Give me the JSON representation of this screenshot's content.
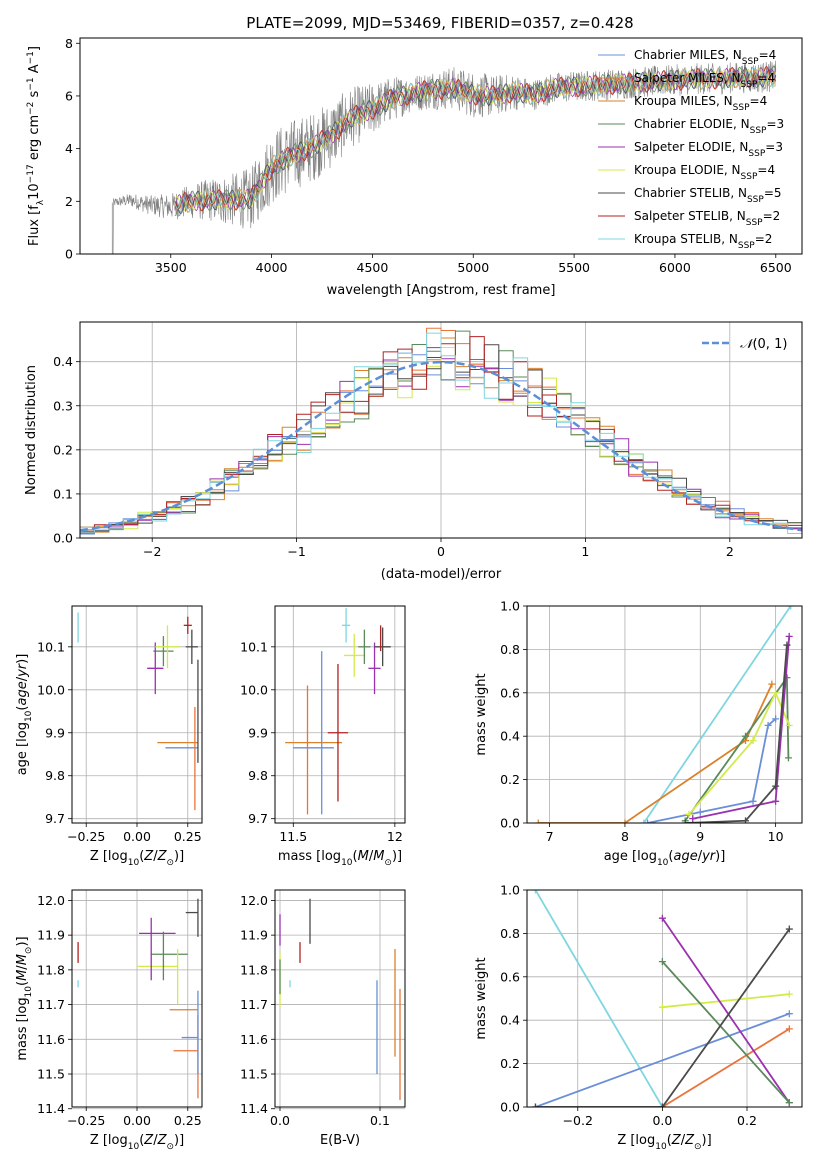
{
  "figure": {
    "title": "PLATE=2099, MJD=53469, FIBERID=0357, z=0.428"
  },
  "colors": {
    "Chabrier MILES": "#6a8fd8",
    "Salpeter MILES": "#e8743b",
    "Kroupa MILES": "#d9822b",
    "Chabrier ELODIE": "#5a8a5a",
    "Salpeter ELODIE": "#9b30b0",
    "Kroupa ELODIE": "#d4ea4a",
    "Chabrier STELIB": "#4a4a4a",
    "Salpeter STELIB": "#b22222",
    "Kroupa STELIB": "#7fd6e0",
    "gaussian": "#5b8fd8",
    "data": "#808080"
  },
  "chart_data": [
    {
      "id": "spectrum",
      "type": "line",
      "title": "PLATE=2099, MJD=53469, FIBERID=0357, z=0.428",
      "xlabel": "wavelength [Angstrom, rest frame]",
      "ylabel": "Flux [f_λ 10^-17 erg cm^-2 s^-1 A^-1]",
      "xlim": [
        3050,
        6630
      ],
      "ylim": [
        0,
        8.2
      ],
      "xticks": [
        3500,
        4000,
        4500,
        5000,
        5500,
        6000,
        6500
      ],
      "yticks": [
        0,
        2,
        4,
        6,
        8
      ],
      "grid": false,
      "legend_position": "top-right",
      "legend": [
        {
          "label": "Chabrier MILES, N",
          "sub": "SSP",
          "suffix": "=4"
        },
        {
          "label": "Salpeter MILES, N",
          "sub": "SSP",
          "suffix": "=4"
        },
        {
          "label": "Kroupa MILES, N",
          "sub": "SSP",
          "suffix": "=4"
        },
        {
          "label": "Chabrier ELODIE, N",
          "sub": "SSP",
          "suffix": "=3"
        },
        {
          "label": "Salpeter ELODIE, N",
          "sub": "SSP",
          "suffix": "=3"
        },
        {
          "label": "Kroupa ELODIE, N",
          "sub": "SSP",
          "suffix": "=4"
        },
        {
          "label": "Chabrier STELIB, N",
          "sub": "SSP",
          "suffix": "=5"
        },
        {
          "label": "Salpeter STELIB, N",
          "sub": "SSP",
          "suffix": "=2"
        },
        {
          "label": "Kroupa STELIB, N",
          "sub": "SSP",
          "suffix": "=2"
        }
      ],
      "continuum": [
        [
          3210,
          1.95
        ],
        [
          3300,
          2.05
        ],
        [
          3400,
          1.85
        ],
        [
          3500,
          1.8
        ],
        [
          3600,
          2.0
        ],
        [
          3700,
          2.05
        ],
        [
          3800,
          2.05
        ],
        [
          3900,
          2.1
        ],
        [
          4000,
          3.3
        ],
        [
          4100,
          3.75
        ],
        [
          4200,
          4.05
        ],
        [
          4300,
          4.55
        ],
        [
          4400,
          5.2
        ],
        [
          4500,
          5.5
        ],
        [
          4600,
          5.9
        ],
        [
          4700,
          6.1
        ],
        [
          4800,
          6.25
        ],
        [
          4900,
          6.3
        ],
        [
          5000,
          6.05
        ],
        [
          5100,
          6.0
        ],
        [
          5200,
          6.15
        ],
        [
          5300,
          6.05
        ],
        [
          5400,
          6.3
        ],
        [
          5500,
          6.35
        ],
        [
          5600,
          6.4
        ],
        [
          5700,
          6.45
        ],
        [
          5800,
          6.5
        ],
        [
          5900,
          6.55
        ],
        [
          6000,
          6.6
        ],
        [
          6100,
          6.65
        ],
        [
          6200,
          6.65
        ],
        [
          6300,
          6.7
        ],
        [
          6400,
          6.7
        ],
        [
          6500,
          6.75
        ]
      ],
      "noise_scale": [
        [
          3210,
          0.15
        ],
        [
          3500,
          0.5
        ],
        [
          3800,
          1.0
        ],
        [
          4000,
          1.4
        ],
        [
          4300,
          1.3
        ],
        [
          4700,
          0.7
        ],
        [
          5000,
          0.9
        ],
        [
          5300,
          0.6
        ],
        [
          5700,
          0.6
        ],
        [
          6500,
          0.6
        ]
      ]
    },
    {
      "id": "residuals",
      "type": "area",
      "xlabel": "(data-model)/error",
      "ylabel": "Normed distribution",
      "xlim": [
        -2.5,
        2.5
      ],
      "ylim": [
        0,
        0.49
      ],
      "xticks": [
        -2,
        -1,
        0,
        1,
        2
      ],
      "yticks": [
        0.0,
        0.1,
        0.2,
        0.3,
        0.4
      ],
      "grid": true,
      "legend_position": "top-right",
      "legend": [
        {
          "label": "N(0, 1)",
          "style": "dashed"
        }
      ],
      "bin_width": 0.1
    },
    {
      "id": "age_vs_z",
      "type": "scatter",
      "xlabel": "Z [log10(Z/Z⊙)]",
      "ylabel": "age [log10(age/yr)]",
      "xlim": [
        -0.32,
        0.32
      ],
      "ylim": [
        9.69,
        10.195
      ],
      "xticks": [
        -0.25,
        0.0,
        0.25
      ],
      "xticklabels": [
        "−0.25",
        "0.00",
        "0.25"
      ],
      "yticks": [
        9.7,
        9.8,
        9.9,
        10.0,
        10.1
      ],
      "grid": true,
      "points": [
        {
          "model": "Chabrier MILES",
          "x": 0.22,
          "xerr": 0.08,
          "y": 9.865,
          "yerr": 0.0
        },
        {
          "model": "Kroupa MILES",
          "x": 0.2,
          "xerr": 0.1,
          "y": 9.877,
          "yerr": 0.0
        },
        {
          "model": "Salpeter MILES",
          "x": 0.285,
          "xerr": 0.0,
          "y": 9.84,
          "yerr": 0.12
        },
        {
          "model": "Chabrier ELODIE",
          "x": 0.13,
          "xerr": 0.05,
          "y": 10.09,
          "yerr": 0.035
        },
        {
          "model": "Salpeter ELODIE",
          "x": 0.09,
          "xerr": 0.04,
          "y": 10.05,
          "yerr": 0.06
        },
        {
          "model": "Kroupa ELODIE",
          "x": 0.15,
          "xerr": 0.06,
          "y": 10.1,
          "yerr": 0.05
        },
        {
          "model": "Chabrier STELIB",
          "x": 0.27,
          "xerr": 0.03,
          "y": 10.1,
          "yerr": 0.04
        },
        {
          "model": "Salpeter STELIB",
          "x": 0.25,
          "xerr": 0.02,
          "y": 10.15,
          "yerr": 0.02
        },
        {
          "model": "Kroupa STELIB",
          "x": -0.29,
          "xerr": 0.0,
          "y": 10.145,
          "yerr": 0.035
        },
        {
          "model": "Chabrier STELIB",
          "x": 0.3,
          "xerr": 0.0,
          "y": 9.95,
          "yerr": 0.12
        }
      ]
    },
    {
      "id": "age_vs_mass",
      "type": "scatter",
      "xlabel": "mass [log10(M/M⊙)]",
      "ylabel": "",
      "xlim": [
        11.41,
        12.05
      ],
      "ylim": [
        9.69,
        10.195
      ],
      "xticks": [
        11.5,
        12.0
      ],
      "yticks": [
        9.7,
        9.8,
        9.9,
        10.0,
        10.1
      ],
      "grid": true,
      "points": [
        {
          "model": "Kroupa MILES",
          "x": 11.6,
          "xerr": 0.14,
          "y": 9.877,
          "yerr": 0.0
        },
        {
          "model": "Chabrier MILES",
          "x": 11.6,
          "xerr": 0.1,
          "y": 9.865,
          "yerr": 0.0
        },
        {
          "model": "Salpeter MILES",
          "x": 11.57,
          "xerr": 0.0,
          "y": 9.86,
          "yerr": 0.15
        },
        {
          "model": "Chabrier MILES",
          "x": 11.64,
          "xerr": 0.0,
          "y": 9.9,
          "yerr": 0.19
        },
        {
          "model": "Salpeter STELIB",
          "x": 11.72,
          "xerr": 0.05,
          "y": 9.9,
          "yerr": 0.16
        },
        {
          "model": "Kroupa STELIB",
          "x": 11.76,
          "xerr": 0.02,
          "y": 10.15,
          "yerr": 0.04
        },
        {
          "model": "Kroupa ELODIE",
          "x": 11.8,
          "xerr": 0.05,
          "y": 10.08,
          "yerr": 0.05
        },
        {
          "model": "Chabrier ELODIE",
          "x": 11.85,
          "xerr": 0.03,
          "y": 10.1,
          "yerr": 0.04
        },
        {
          "model": "Salpeter ELODIE",
          "x": 11.9,
          "xerr": 0.03,
          "y": 10.05,
          "yerr": 0.06
        },
        {
          "model": "Chabrier STELIB",
          "x": 11.94,
          "xerr": 0.04,
          "y": 10.1,
          "yerr": 0.045
        },
        {
          "model": "Salpeter STELIB",
          "x": 11.93,
          "xerr": 0.0,
          "y": 10.12,
          "yerr": 0.03
        }
      ]
    },
    {
      "id": "weight_vs_age",
      "type": "line",
      "xlabel": "age [log10(age/yr)]",
      "ylabel": "mass weight",
      "xlim": [
        6.7,
        10.35
      ],
      "ylim": [
        0,
        1.0
      ],
      "xticks": [
        7,
        8,
        9,
        10
      ],
      "yticks": [
        0.0,
        0.2,
        0.4,
        0.6,
        0.8,
        1.0
      ],
      "grid": true,
      "series": [
        {
          "model": "Kroupa STELIB",
          "points": [
            [
              8.25,
              0.0
            ],
            [
              10.2,
              1.0
            ]
          ]
        },
        {
          "model": "Kroupa MILES",
          "points": [
            [
              6.85,
              0.0
            ],
            [
              8.0,
              0.0
            ],
            [
              9.6,
              0.38
            ],
            [
              9.95,
              0.64
            ]
          ]
        },
        {
          "model": "Chabrier ELODIE",
          "points": [
            [
              8.8,
              0.01
            ],
            [
              9.6,
              0.4
            ],
            [
              10.15,
              0.67
            ],
            [
              10.17,
              0.3
            ]
          ]
        },
        {
          "model": "Chabrier MILES",
          "points": [
            [
              8.3,
              0.0
            ],
            [
              9.0,
              0.05
            ],
            [
              9.7,
              0.1
            ],
            [
              9.9,
              0.45
            ],
            [
              10.0,
              0.48
            ]
          ]
        },
        {
          "model": "Kroupa ELODIE",
          "points": [
            [
              8.85,
              0.04
            ],
            [
              9.7,
              0.38
            ],
            [
              10.0,
              0.6
            ],
            [
              10.18,
              0.45
            ]
          ]
        },
        {
          "model": "Salpeter ELODIE",
          "points": [
            [
              8.9,
              0.02
            ],
            [
              10.0,
              0.1
            ],
            [
              10.18,
              0.86
            ]
          ]
        },
        {
          "model": "Chabrier STELIB",
          "points": [
            [
              8.8,
              0.0
            ],
            [
              9.6,
              0.01
            ],
            [
              10.0,
              0.17
            ],
            [
              10.15,
              0.82
            ]
          ]
        }
      ]
    },
    {
      "id": "mass_vs_z",
      "type": "scatter",
      "xlabel": "Z [log10(Z/Z⊙)]",
      "ylabel": "mass [log10(M/M⊙)]",
      "xlim": [
        -0.32,
        0.32
      ],
      "ylim": [
        11.405,
        12.03
      ],
      "xticks": [
        -0.25,
        0.0,
        0.25
      ],
      "xticklabels": [
        "−0.25",
        "0.00",
        "0.25"
      ],
      "yticks": [
        11.4,
        11.5,
        11.6,
        11.7,
        11.8,
        11.9,
        12.0
      ],
      "grid": true,
      "points": [
        {
          "model": "Salpeter MILES",
          "x": 0.24,
          "xerr": 0.06,
          "y": 11.567,
          "yerr": 0.0
        },
        {
          "model": "Chabrier MILES",
          "x": 0.26,
          "xerr": 0.04,
          "y": 11.605,
          "yerr": 0.0
        },
        {
          "model": "Salpeter MILES",
          "x": 0.3,
          "xerr": 0.0,
          "y": 11.55,
          "yerr": 0.12
        },
        {
          "model": "Chabrier MILES",
          "x": 0.3,
          "xerr": 0.0,
          "y": 11.62,
          "yerr": 0.12
        },
        {
          "model": "Kroupa MILES",
          "x": 0.23,
          "xerr": 0.07,
          "y": 11.685,
          "yerr": 0.0
        },
        {
          "model": "Kroupa ELODIE",
          "x": 0.1,
          "xerr": 0.1,
          "y": 11.81,
          "yerr": 0.0
        },
        {
          "model": "Chabrier ELODIE",
          "x": 0.16,
          "xerr": 0.09,
          "y": 11.845,
          "yerr": 0.0
        },
        {
          "model": "Salpeter ELODIE",
          "x": 0.1,
          "xerr": 0.09,
          "y": 11.905,
          "yerr": 0.0
        },
        {
          "model": "Salpeter ELODIE",
          "x": 0.07,
          "xerr": 0.0,
          "y": 11.86,
          "yerr": 0.09
        },
        {
          "model": "Chabrier ELODIE",
          "x": 0.13,
          "xerr": 0.0,
          "y": 11.84,
          "yerr": 0.07
        },
        {
          "model": "Kroupa ELODIE",
          "x": 0.2,
          "xerr": 0.0,
          "y": 11.78,
          "yerr": 0.08
        },
        {
          "model": "Chabrier STELIB",
          "x": 0.27,
          "xerr": 0.03,
          "y": 11.965,
          "yerr": 0.0
        },
        {
          "model": "Chabrier STELIB",
          "x": 0.3,
          "xerr": 0.0,
          "y": 11.95,
          "yerr": 0.055
        },
        {
          "model": "Salpeter STELIB",
          "x": -0.29,
          "xerr": 0.0,
          "y": 11.85,
          "yerr": 0.03
        },
        {
          "model": "Kroupa STELIB",
          "x": -0.29,
          "xerr": 0.0,
          "y": 11.76,
          "yerr": 0.01
        }
      ]
    },
    {
      "id": "mass_vs_ebv",
      "type": "scatter",
      "xlabel": "E(B-V)",
      "ylabel": "",
      "xlim": [
        -0.005,
        0.125
      ],
      "ylim": [
        11.405,
        12.03
      ],
      "xticks": [
        0.0,
        0.1
      ],
      "xticklabels": [
        "0.0",
        "0.1"
      ],
      "yticks": [
        11.4,
        11.5,
        11.6,
        11.7,
        11.8,
        11.9,
        12.0
      ],
      "grid": true,
      "points": [
        {
          "model": "Salpeter ELODIE",
          "x": 0.0,
          "xerr": 0.0,
          "y": 11.915,
          "yerr": 0.045
        },
        {
          "model": "Kroupa ELODIE",
          "x": 0.0,
          "xerr": 0.0,
          "y": 11.77,
          "yerr": 0.08
        },
        {
          "model": "Chabrier ELODIE",
          "x": 0.0,
          "xerr": 0.0,
          "y": 11.78,
          "yerr": 0.05
        },
        {
          "model": "Kroupa STELIB",
          "x": 0.01,
          "xerr": 0.0,
          "y": 11.76,
          "yerr": 0.01
        },
        {
          "model": "Salpeter STELIB",
          "x": 0.02,
          "xerr": 0.0,
          "y": 11.85,
          "yerr": 0.03
        },
        {
          "model": "Chabrier STELIB",
          "x": 0.03,
          "xerr": 0.0,
          "y": 11.94,
          "yerr": 0.065
        },
        {
          "model": "Chabrier MILES",
          "x": 0.097,
          "xerr": 0.0,
          "y": 11.635,
          "yerr": 0.135
        },
        {
          "model": "Kroupa MILES",
          "x": 0.115,
          "xerr": 0.0,
          "y": 11.705,
          "yerr": 0.155
        },
        {
          "model": "Salpeter MILES",
          "x": 0.12,
          "xerr": 0.0,
          "y": 11.585,
          "yerr": 0.16
        }
      ]
    },
    {
      "id": "weight_vs_z",
      "type": "line",
      "xlabel": "Z [log10(Z/Z⊙)]",
      "ylabel": "mass weight",
      "xlim": [
        -0.32,
        0.33
      ],
      "ylim": [
        0,
        1.0
      ],
      "xticks": [
        -0.2,
        0.0,
        0.2
      ],
      "xticklabels": [
        "−0.2",
        "0.0",
        "0.2"
      ],
      "yticks": [
        0.0,
        0.2,
        0.4,
        0.6,
        0.8,
        1.0
      ],
      "grid": true,
      "series": [
        {
          "model": "Kroupa STELIB",
          "points": [
            [
              -0.3,
              1.0
            ],
            [
              0.0,
              0.0
            ]
          ]
        },
        {
          "model": "Chabrier MILES",
          "points": [
            [
              -0.3,
              0.0
            ],
            [
              0.3,
              0.43
            ]
          ]
        },
        {
          "model": "Salpeter MILES",
          "points": [
            [
              0.0,
              0.0
            ],
            [
              0.3,
              0.36
            ]
          ]
        },
        {
          "model": "Kroupa ELODIE",
          "points": [
            [
              0.0,
              0.46
            ],
            [
              0.3,
              0.52
            ]
          ]
        },
        {
          "model": "Salpeter ELODIE",
          "points": [
            [
              0.0,
              0.87
            ],
            [
              0.3,
              0.02
            ]
          ]
        },
        {
          "model": "Chabrier ELODIE",
          "points": [
            [
              0.0,
              0.67
            ],
            [
              0.3,
              0.02
            ]
          ]
        },
        {
          "model": "Chabrier STELIB",
          "points": [
            [
              -0.3,
              0.0
            ],
            [
              0.0,
              0.0
            ],
            [
              0.3,
              0.82
            ]
          ]
        }
      ]
    }
  ]
}
